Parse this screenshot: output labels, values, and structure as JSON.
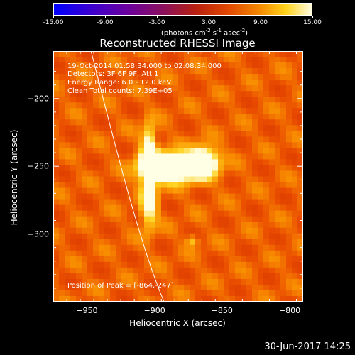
{
  "colorbar": {
    "ticks": [
      "-15.00",
      "-9.00",
      "-3.00",
      "3.00",
      "9.00",
      "15.00"
    ],
    "unit_main": "(photons cm",
    "unit_sup1": "-2",
    "unit_mid1": " s",
    "unit_sup2": "-1",
    "unit_mid2": " asec",
    "unit_sup3": "-2",
    "unit_end": ")",
    "colors": [
      "#0000ff",
      "#6a00a0",
      "#b82010",
      "#f48a00",
      "#ffd21c",
      "#fffbe0"
    ]
  },
  "chart_data": {
    "type": "heatmap",
    "title": "Reconstructed RHESSI Image",
    "xlabel": "Heliocentric X (arcsec)",
    "ylabel": "Heliocentric Y (arcsec)",
    "xlim": [
      -975,
      -790
    ],
    "ylim": [
      -350,
      -165
    ],
    "x_ticks": [
      "−950",
      "−900",
      "−850",
      "−800"
    ],
    "y_ticks": [
      "−200",
      "−250",
      "−300"
    ],
    "info_lines": [
      "19-Oct-2014 01:58:34.000 to 02:08:34.000",
      "Detectors: 3F 6F 9F, Att 1",
      "Energy Range: 6.0 - 12.0 keV",
      "Clean     Total counts: 7.39E+05"
    ],
    "peak_label": "Position of Peak = [-864,-247]",
    "peak": [
      -864,
      -247
    ],
    "sources": [
      {
        "x": -885,
        "y": -251,
        "sx": 14,
        "sy": 7,
        "amp": 15
      },
      {
        "x": -864,
        "y": -247,
        "sx": 7,
        "sy": 7,
        "amp": 15
      },
      {
        "x": -904,
        "y": -237,
        "sx": 3.5,
        "sy": 12,
        "amp": 10
      },
      {
        "x": -904,
        "y": -275,
        "sx": 4,
        "sy": 14,
        "amp": 9.5
      },
      {
        "x": -900,
        "y": -250,
        "sx": 8,
        "sy": 6,
        "amp": 11
      },
      {
        "x": -872,
        "y": -305,
        "sx": 3,
        "sy": 3,
        "amp": 4.5
      }
    ],
    "background_level": 7.5,
    "limb_curve": [
      [
        -947,
        -165
      ],
      [
        -928,
        -240
      ],
      [
        -910,
        -310
      ],
      [
        -893,
        -350
      ]
    ]
  },
  "timestamp": "30-Jun-2017 14:25"
}
